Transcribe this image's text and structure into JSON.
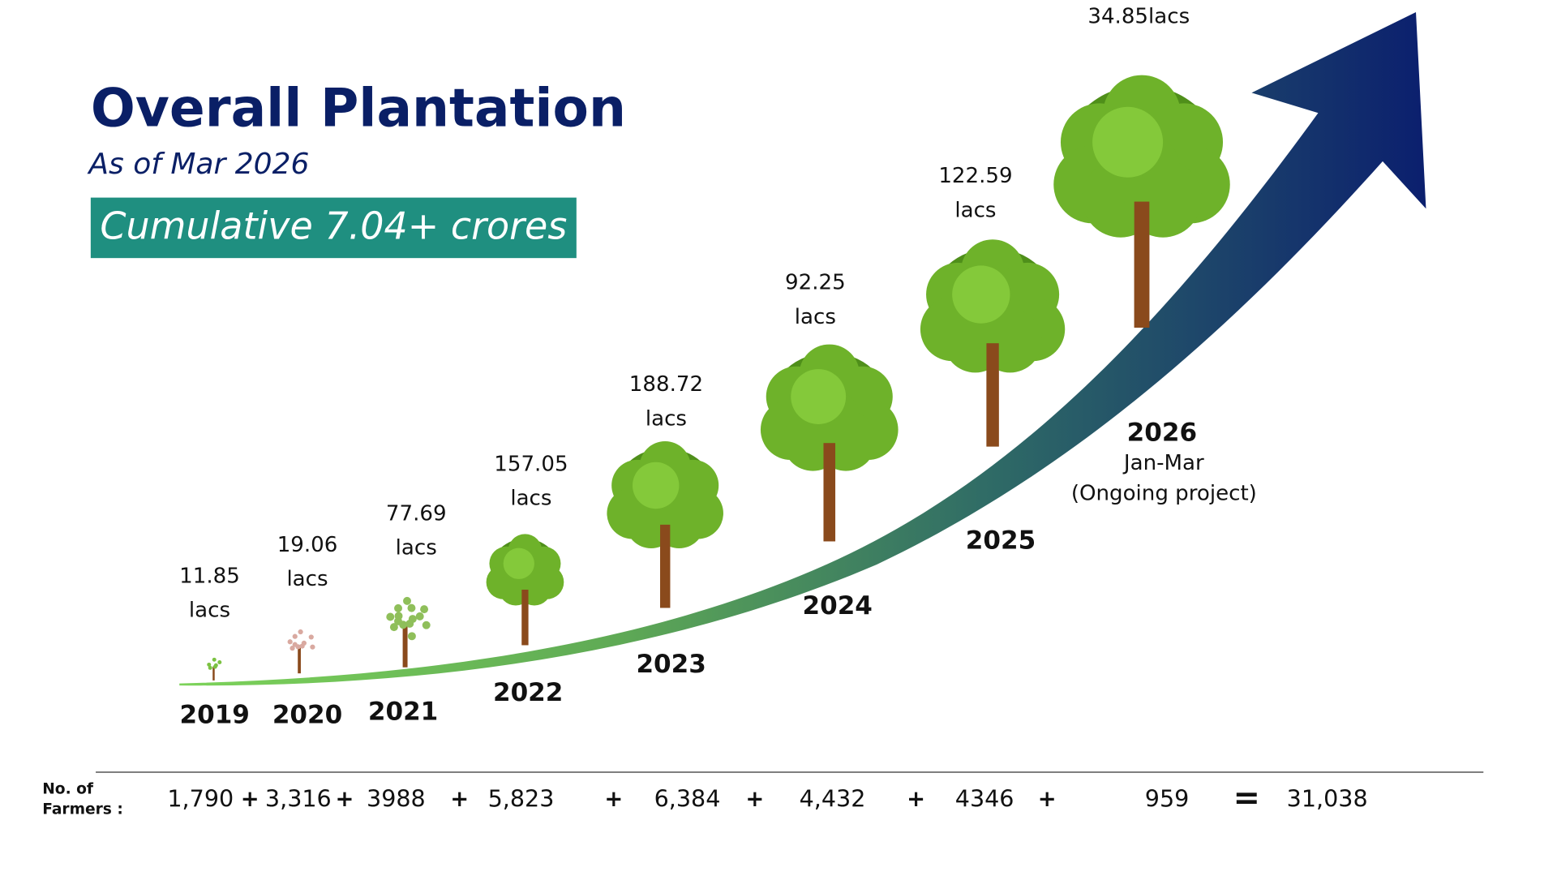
{
  "header": {
    "title": "Overall Plantation",
    "subtitle": "As of Mar 2026",
    "badge": "Cumulative 7.04+ crores"
  },
  "years": [
    {
      "year": "2019",
      "amount": "11.85",
      "unit": "lacs"
    },
    {
      "year": "2020",
      "amount": "19.06",
      "unit": "lacs"
    },
    {
      "year": "2021",
      "amount": "77.69",
      "unit": "lacs"
    },
    {
      "year": "2022",
      "amount": "157.05",
      "unit": "lacs"
    },
    {
      "year": "2023",
      "amount": "188.72",
      "unit": "lacs"
    },
    {
      "year": "2024",
      "amount": "92.25",
      "unit": "lacs"
    },
    {
      "year": "2025",
      "amount": "122.59",
      "unit": "lacs"
    },
    {
      "year": "2026",
      "amount": "34.85lacs",
      "period": "Jan-Mar",
      "note": "(Ongoing project)"
    }
  ],
  "farmers": {
    "label": [
      "No. of",
      "Farmers :"
    ],
    "values": [
      "1,790",
      "3,316",
      "3988",
      "5,823",
      "6,384",
      "4,432",
      "4346",
      "959"
    ],
    "operator": "+",
    "equals": "=",
    "total": "31,038"
  }
}
